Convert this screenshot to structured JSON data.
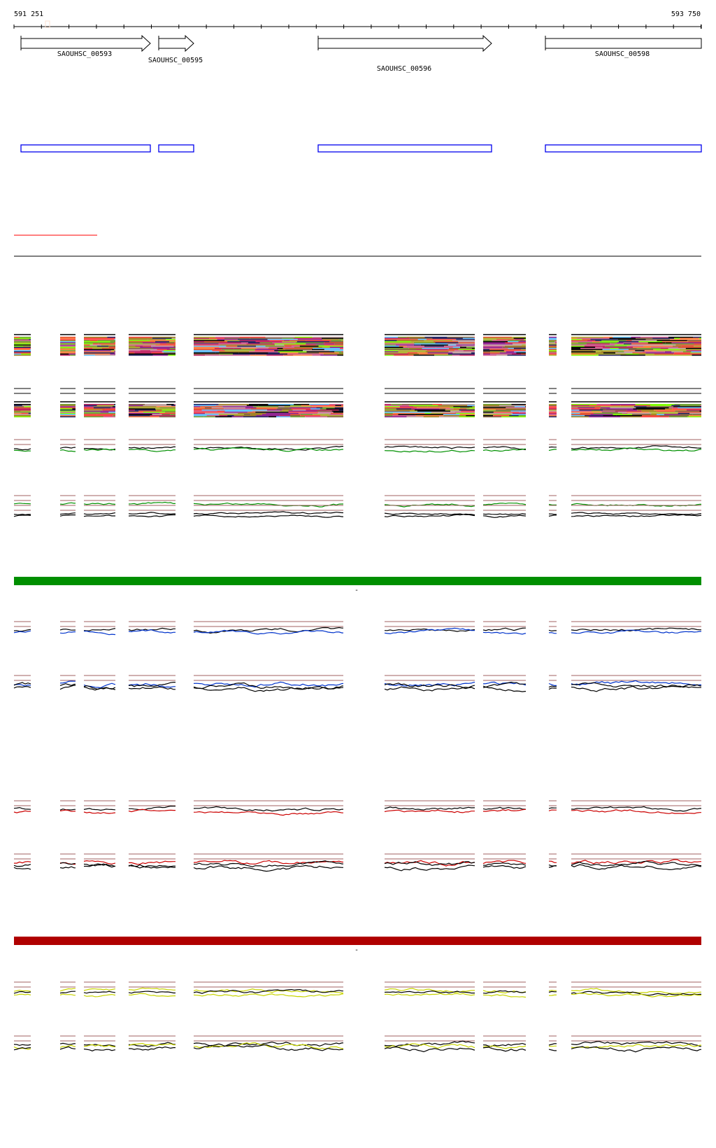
{
  "axis": {
    "start_label": "591 251",
    "end_label": "593 750"
  },
  "genes": [
    {
      "id": "SAOUHSC_00593",
      "strand": "+"
    },
    {
      "id": "SAOUHSC_00595",
      "strand": "+"
    },
    {
      "id": "SAOUHSC_00596",
      "strand": "+"
    },
    {
      "id": "SAOUHSC_00598",
      "strand": "none"
    }
  ],
  "colors": {
    "gene_outline": "#000000",
    "feature_box": "#0000ee",
    "red_marker": "#ff0000",
    "reference_line": "#a06060",
    "green_bar": "#008f00",
    "red_bar": "#b00000",
    "green_series": "#009000",
    "blue_series": "#0033cc",
    "red_series": "#cc0000",
    "yellow_series": "#c8d400",
    "black_series": "#000000"
  },
  "separators": {
    "green_bar_mark": "-",
    "red_bar_mark": "-"
  }
}
